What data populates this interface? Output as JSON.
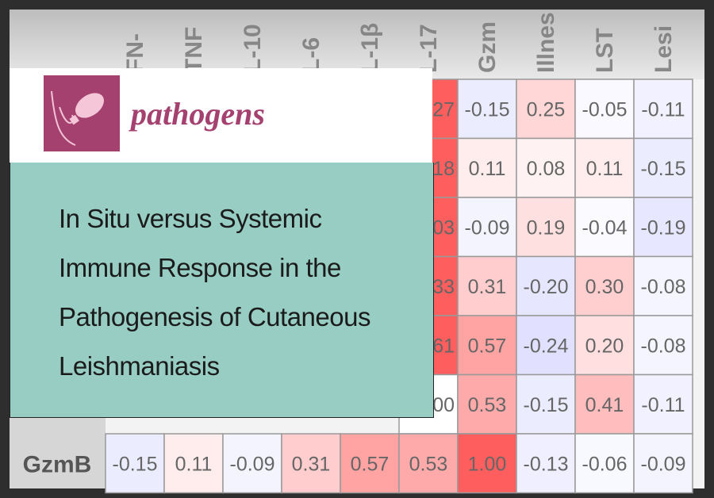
{
  "journal": {
    "name": "pathogens"
  },
  "article": {
    "title_lines": [
      "In Situ versus Systemic",
      "Immune Response in the",
      "Pathogenesis of Cutaneous",
      "Leishmaniasis"
    ]
  },
  "heatmap": {
    "columns": [
      "FN-",
      "TNF",
      "L-10",
      "L-6",
      "L-1β",
      "L-17",
      "Gzm",
      "Illnes",
      "LST",
      "Lesi"
    ],
    "rows": [
      {
        "cells": [
          "27",
          "-0.15",
          "0.25",
          "-0.05",
          "-0.11"
        ]
      },
      {
        "cells": [
          "18",
          "0.11",
          "0.08",
          "0.11",
          "-0.15"
        ]
      },
      {
        "cells": [
          "03",
          "-0.09",
          "0.19",
          "-0.04",
          "-0.19"
        ]
      },
      {
        "cells": [
          "33",
          "0.31",
          "-0.20",
          "0.30",
          "-0.08"
        ]
      },
      {
        "cells": [
          "61",
          "0.57",
          "-0.24",
          "0.20",
          "-0.08"
        ]
      },
      {
        "cells": [
          "00",
          "0.53",
          "-0.15",
          "0.41",
          "-0.11"
        ]
      },
      {
        "label": "GzmB",
        "cells": [
          "-0.15",
          "0.11",
          "-0.09",
          "0.31",
          "0.57",
          "0.53",
          "1.00",
          "-0.13",
          "-0.06",
          "-0.09"
        ]
      }
    ]
  }
}
